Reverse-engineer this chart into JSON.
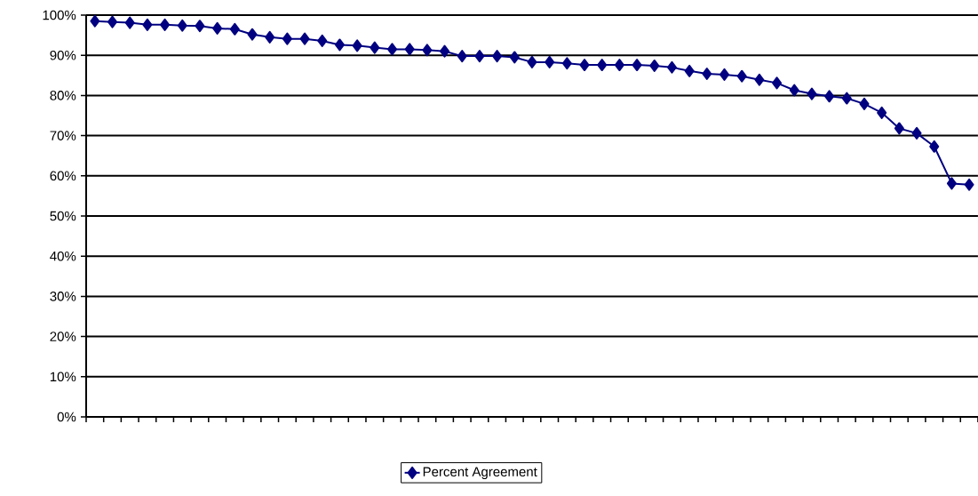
{
  "chart_data": {
    "type": "line",
    "categories": [
      null,
      null,
      null,
      null,
      null,
      null,
      null,
      null,
      null,
      null,
      null,
      null,
      null,
      null,
      null,
      null,
      null,
      null,
      null,
      null,
      null,
      null,
      null,
      null,
      null,
      null,
      null,
      null,
      null,
      null,
      null,
      null,
      null,
      null,
      null,
      null,
      null,
      null,
      null,
      null,
      null,
      null,
      null,
      null,
      null,
      null,
      null,
      null,
      null,
      null,
      null
    ],
    "series": [
      {
        "name": "Percent Agreement",
        "color": "#000080",
        "values": [
          98.5,
          98.3,
          98.1,
          97.6,
          97.6,
          97.4,
          97.3,
          96.7,
          96.5,
          95.2,
          94.5,
          94.1,
          94.1,
          93.6,
          92.6,
          92.4,
          91.9,
          91.5,
          91.5,
          91.3,
          91.0,
          89.8,
          89.8,
          89.8,
          89.5,
          88.3,
          88.3,
          88.0,
          87.6,
          87.6,
          87.6,
          87.6,
          87.4,
          87.0,
          86.1,
          85.4,
          85.2,
          84.8,
          83.9,
          83.1,
          81.3,
          80.4,
          79.8,
          79.3,
          77.9,
          75.7,
          71.8,
          70.6,
          67.3,
          58.1,
          57.8
        ]
      }
    ],
    "ylim": [
      0,
      100
    ],
    "yticks": [
      {
        "value": 0,
        "label": "0%"
      },
      {
        "value": 10,
        "label": "10%"
      },
      {
        "value": 20,
        "label": "20%"
      },
      {
        "value": 30,
        "label": "30%"
      },
      {
        "value": 40,
        "label": "40%"
      },
      {
        "value": 50,
        "label": "50%"
      },
      {
        "value": 60,
        "label": "60%"
      },
      {
        "value": 70,
        "label": "70%"
      },
      {
        "value": 80,
        "label": "80%"
      },
      {
        "value": 90,
        "label": "90%"
      },
      {
        "value": 100,
        "label": "100%"
      }
    ],
    "grid": "y",
    "legend": "bottom",
    "marker": "diamond",
    "line_style": "solid"
  }
}
